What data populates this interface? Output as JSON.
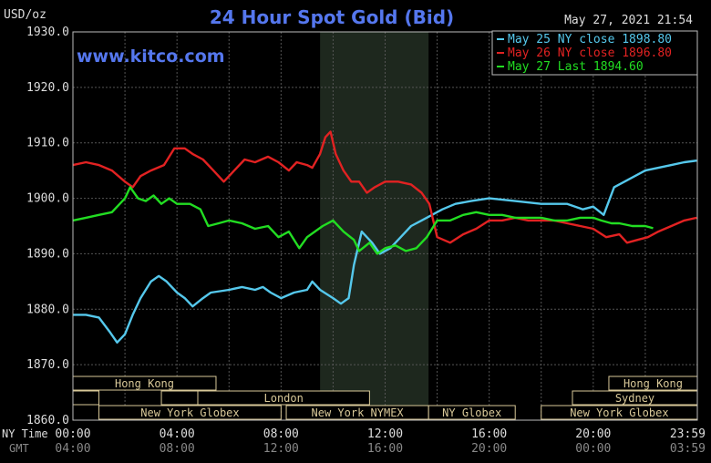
{
  "chart_data": {
    "type": "line",
    "title": "24 Hour Spot Gold (Bid)",
    "ylabel": "USD/oz",
    "timestamp": "May 27, 2021 21:54",
    "watermark": "www.kitco.com",
    "ylim": [
      1860,
      1930
    ],
    "y_ticks": [
      "1930.0",
      "1920.0",
      "1910.0",
      "1900.0",
      "1890.0",
      "1880.0",
      "1870.0",
      "1860.0"
    ],
    "x_ticks_ny": [
      "00:00",
      "04:00",
      "08:00",
      "12:00",
      "16:00",
      "20:00",
      "23:59"
    ],
    "x_ticks_gmt": [
      "04:00",
      "08:00",
      "12:00",
      "16:00",
      "20:00",
      "00:00",
      "03:59"
    ],
    "xaxis_row_label_ny": "NY Time",
    "xaxis_row_label_gmt": "GMT",
    "shaded_region_hours": [
      9.5,
      13.67
    ],
    "series": [
      {
        "name": "May 25 NY close 1898.80",
        "color": "#55c8ec",
        "points": [
          [
            0,
            1879
          ],
          [
            0.5,
            1879
          ],
          [
            1.0,
            1878.5
          ],
          [
            1.4,
            1876
          ],
          [
            1.7,
            1874
          ],
          [
            2.0,
            1875.5
          ],
          [
            2.3,
            1879
          ],
          [
            2.6,
            1882
          ],
          [
            3.0,
            1885
          ],
          [
            3.3,
            1886
          ],
          [
            3.6,
            1885
          ],
          [
            4.0,
            1883
          ],
          [
            4.3,
            1882
          ],
          [
            4.6,
            1880.5
          ],
          [
            5.0,
            1882
          ],
          [
            5.3,
            1883
          ],
          [
            6.0,
            1883.5
          ],
          [
            6.5,
            1884
          ],
          [
            7.0,
            1883.5
          ],
          [
            7.3,
            1884
          ],
          [
            7.6,
            1883
          ],
          [
            8.0,
            1882
          ],
          [
            8.5,
            1883
          ],
          [
            9.0,
            1883.5
          ],
          [
            9.2,
            1885
          ],
          [
            9.5,
            1883.5
          ],
          [
            10.0,
            1882
          ],
          [
            10.3,
            1881
          ],
          [
            10.6,
            1882
          ],
          [
            10.8,
            1888
          ],
          [
            11.1,
            1894
          ],
          [
            11.5,
            1892
          ],
          [
            11.8,
            1890
          ],
          [
            12.2,
            1891
          ],
          [
            12.6,
            1893
          ],
          [
            13.0,
            1895
          ],
          [
            13.4,
            1896
          ],
          [
            13.8,
            1897
          ],
          [
            14.2,
            1898
          ],
          [
            14.7,
            1899
          ],
          [
            15.3,
            1899.5
          ],
          [
            16.0,
            1900
          ],
          [
            17.0,
            1899.5
          ],
          [
            18.0,
            1899
          ],
          [
            19.0,
            1899
          ],
          [
            19.6,
            1898
          ],
          [
            20.0,
            1898.5
          ],
          [
            20.4,
            1897
          ],
          [
            20.8,
            1902
          ],
          [
            21.2,
            1903
          ],
          [
            21.6,
            1904
          ],
          [
            22.0,
            1905
          ],
          [
            22.5,
            1905.5
          ],
          [
            23.0,
            1906
          ],
          [
            23.5,
            1906.5
          ],
          [
            23.98,
            1906.8
          ]
        ]
      },
      {
        "name": "May 26 NY close 1896.80",
        "color": "#e22222",
        "points": [
          [
            0,
            1906
          ],
          [
            0.5,
            1906.5
          ],
          [
            1.0,
            1906
          ],
          [
            1.5,
            1905
          ],
          [
            2.0,
            1903
          ],
          [
            2.3,
            1902
          ],
          [
            2.6,
            1904
          ],
          [
            3.0,
            1905
          ],
          [
            3.5,
            1906
          ],
          [
            3.9,
            1909
          ],
          [
            4.3,
            1909
          ],
          [
            4.6,
            1908
          ],
          [
            5.0,
            1907
          ],
          [
            5.4,
            1905
          ],
          [
            5.8,
            1903
          ],
          [
            6.2,
            1905
          ],
          [
            6.6,
            1907
          ],
          [
            7.0,
            1906.5
          ],
          [
            7.5,
            1907.5
          ],
          [
            7.9,
            1906.5
          ],
          [
            8.3,
            1905
          ],
          [
            8.6,
            1906.5
          ],
          [
            9.0,
            1906
          ],
          [
            9.2,
            1905.5
          ],
          [
            9.5,
            1908
          ],
          [
            9.7,
            1911
          ],
          [
            9.9,
            1912
          ],
          [
            10.1,
            1908
          ],
          [
            10.4,
            1905
          ],
          [
            10.7,
            1903
          ],
          [
            11.0,
            1903
          ],
          [
            11.3,
            1901
          ],
          [
            11.6,
            1902
          ],
          [
            12.0,
            1903
          ],
          [
            12.5,
            1903
          ],
          [
            13.0,
            1902.5
          ],
          [
            13.4,
            1901
          ],
          [
            13.7,
            1899
          ],
          [
            14.0,
            1893
          ],
          [
            14.5,
            1892
          ],
          [
            15.0,
            1893.5
          ],
          [
            15.5,
            1894.5
          ],
          [
            16.0,
            1896
          ],
          [
            16.5,
            1896
          ],
          [
            17.0,
            1896.5
          ],
          [
            17.5,
            1896
          ],
          [
            18.0,
            1896
          ],
          [
            18.5,
            1896
          ],
          [
            19.0,
            1895.5
          ],
          [
            19.5,
            1895
          ],
          [
            20.0,
            1894.5
          ],
          [
            20.5,
            1893
          ],
          [
            21.0,
            1893.5
          ],
          [
            21.3,
            1892
          ],
          [
            21.7,
            1892.5
          ],
          [
            22.1,
            1893
          ],
          [
            22.5,
            1894
          ],
          [
            23.0,
            1895
          ],
          [
            23.5,
            1896
          ],
          [
            23.98,
            1896.5
          ]
        ]
      },
      {
        "name": "May 27 Last 1894.60",
        "color": "#22dd22",
        "points": [
          [
            0,
            1896
          ],
          [
            0.5,
            1896.5
          ],
          [
            1.0,
            1897
          ],
          [
            1.5,
            1897.5
          ],
          [
            1.8,
            1899
          ],
          [
            2.0,
            1900
          ],
          [
            2.2,
            1902
          ],
          [
            2.5,
            1900
          ],
          [
            2.8,
            1899.5
          ],
          [
            3.1,
            1900.5
          ],
          [
            3.4,
            1899
          ],
          [
            3.7,
            1900
          ],
          [
            4.0,
            1899
          ],
          [
            4.5,
            1899
          ],
          [
            4.9,
            1898
          ],
          [
            5.2,
            1895
          ],
          [
            5.6,
            1895.5
          ],
          [
            6.0,
            1896
          ],
          [
            6.5,
            1895.5
          ],
          [
            7.0,
            1894.5
          ],
          [
            7.5,
            1895
          ],
          [
            7.9,
            1893
          ],
          [
            8.3,
            1894
          ],
          [
            8.7,
            1891
          ],
          [
            9.0,
            1893
          ],
          [
            9.3,
            1894
          ],
          [
            9.6,
            1895
          ],
          [
            10.0,
            1896
          ],
          [
            10.4,
            1894
          ],
          [
            10.8,
            1892.5
          ],
          [
            11.0,
            1890.5
          ],
          [
            11.4,
            1892
          ],
          [
            11.7,
            1890
          ],
          [
            12.0,
            1891
          ],
          [
            12.4,
            1891.5
          ],
          [
            12.8,
            1890.5
          ],
          [
            13.2,
            1891
          ],
          [
            13.6,
            1893
          ],
          [
            14.0,
            1896
          ],
          [
            14.5,
            1896
          ],
          [
            15.0,
            1897
          ],
          [
            15.5,
            1897.5
          ],
          [
            16.0,
            1897
          ],
          [
            16.5,
            1897
          ],
          [
            17.0,
            1896.5
          ],
          [
            17.5,
            1896.5
          ],
          [
            18.0,
            1896.5
          ],
          [
            18.5,
            1896
          ],
          [
            19.0,
            1896
          ],
          [
            19.5,
            1896.5
          ],
          [
            20.0,
            1896.5
          ],
          [
            20.3,
            1896
          ],
          [
            20.7,
            1895.5
          ],
          [
            21.0,
            1895.5
          ],
          [
            21.5,
            1895
          ],
          [
            22.0,
            1895
          ],
          [
            22.3,
            1894.6
          ]
        ]
      }
    ],
    "sessions": [
      {
        "label": "Hong Kong",
        "start": 0,
        "end": 5.5,
        "row": 0,
        "show_label": true
      },
      {
        "label": "",
        "start": 0,
        "end": 1.0,
        "row": 1,
        "show_label": false
      },
      {
        "label": "",
        "start": 3.4,
        "end": 5.0,
        "row": 1,
        "show_label": false
      },
      {
        "label": "London",
        "start": 4.8,
        "end": 11.4,
        "row": 1,
        "show_label": true
      },
      {
        "label": "New York Globex",
        "start": 1.0,
        "end": 8.0,
        "row": 2,
        "show_label": true
      },
      {
        "label": "New York NYMEX",
        "start": 8.2,
        "end": 13.67,
        "row": 2,
        "show_label": true
      },
      {
        "label": "NY Globex",
        "start": 13.67,
        "end": 17.0,
        "row": 2,
        "show_label": true
      },
      {
        "label": "Hong Kong",
        "start": 20.6,
        "end": 24,
        "row": 0,
        "show_label": true
      },
      {
        "label": "Sydney",
        "start": 19.2,
        "end": 24,
        "row": 1,
        "show_label": true
      },
      {
        "label": "New York Globex",
        "start": 18.0,
        "end": 24,
        "row": 2,
        "show_label": true
      }
    ]
  }
}
